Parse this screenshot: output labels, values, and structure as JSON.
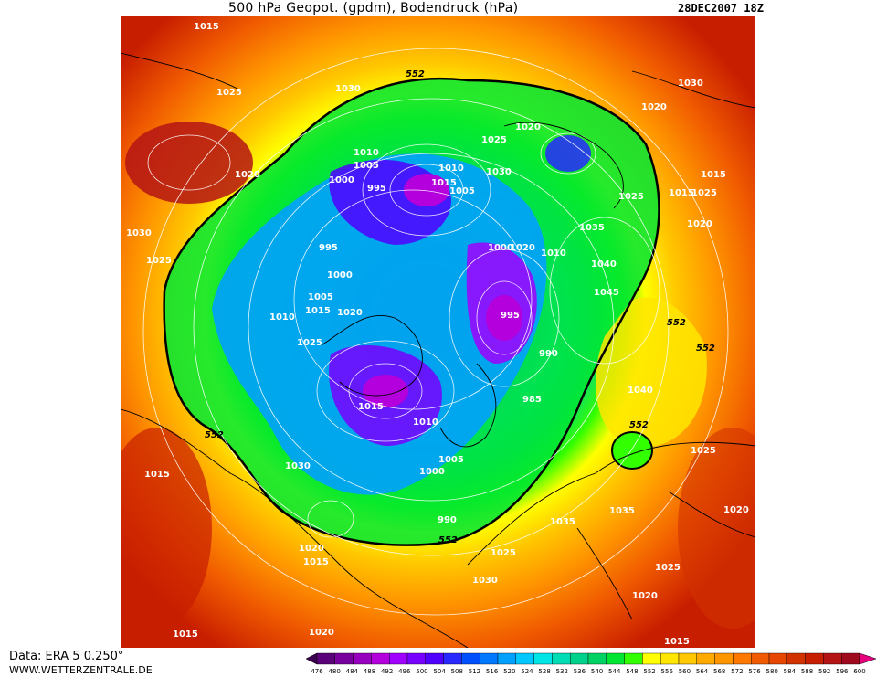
{
  "header": {
    "title": "500 hPa Geopot. (gpdm), Bodendruck (hPa)",
    "datetime": "28DEC2007 18Z"
  },
  "footer": {
    "source": "Data: ERA 5 0.250°",
    "website": "WWW.WETTERZENTRALE.DE"
  },
  "legend": {
    "values": [
      "476",
      "480",
      "484",
      "488",
      "492",
      "496",
      "500",
      "504",
      "508",
      "512",
      "516",
      "520",
      "524",
      "528",
      "532",
      "536",
      "540",
      "544",
      "548",
      "552",
      "556",
      "560",
      "564",
      "568",
      "572",
      "576",
      "580",
      "584",
      "588",
      "592",
      "596",
      "600"
    ],
    "colors": [
      "#3c0050",
      "#5a0078",
      "#78009c",
      "#9600be",
      "#b400dc",
      "#a000ff",
      "#7800ff",
      "#5000ff",
      "#2828ff",
      "#0050ff",
      "#0078ff",
      "#00a0ff",
      "#00c8ff",
      "#00e6e6",
      "#00dcb4",
      "#00d28c",
      "#00d264",
      "#00e632",
      "#32ff00",
      "#ffff00",
      "#ffe600",
      "#ffc800",
      "#ffaa00",
      "#ff9600",
      "#ff7800",
      "#f05a00",
      "#e64600",
      "#d23200",
      "#c81e00",
      "#b41414",
      "#a00a1e",
      "#e6007e"
    ]
  },
  "map": {
    "contour_label_552": "552",
    "pressure_labels": [
      {
        "text": "1015"
      },
      {
        "text": "1025"
      },
      {
        "text": "1020"
      },
      {
        "text": "1030"
      },
      {
        "text": "1025"
      },
      {
        "text": "1010"
      },
      {
        "text": "1005"
      },
      {
        "text": "1000"
      },
      {
        "text": "995"
      },
      {
        "text": "995"
      },
      {
        "text": "1000"
      },
      {
        "text": "1005"
      },
      {
        "text": "1010"
      },
      {
        "text": "1015"
      },
      {
        "text": "1020"
      },
      {
        "text": "1025"
      },
      {
        "text": "1030"
      },
      {
        "text": "1030"
      },
      {
        "text": "1025"
      },
      {
        "text": "1020"
      },
      {
        "text": "1015"
      },
      {
        "text": "1010"
      },
      {
        "text": "1005"
      },
      {
        "text": "1000"
      },
      {
        "text": "995"
      },
      {
        "text": "990"
      },
      {
        "text": "985"
      },
      {
        "text": "990"
      },
      {
        "text": "1000"
      },
      {
        "text": "1005"
      },
      {
        "text": "1010"
      },
      {
        "text": "1015"
      },
      {
        "text": "1020"
      },
      {
        "text": "1025"
      },
      {
        "text": "1030"
      },
      {
        "text": "1035"
      },
      {
        "text": "1040"
      },
      {
        "text": "1045"
      },
      {
        "text": "1040"
      },
      {
        "text": "1035"
      },
      {
        "text": "1025"
      },
      {
        "text": "1020"
      },
      {
        "text": "1015"
      },
      {
        "text": "1010"
      },
      {
        "text": "1020"
      },
      {
        "text": "1015"
      },
      {
        "text": "1030"
      },
      {
        "text": "1025"
      },
      {
        "text": "1015"
      },
      {
        "text": "1020"
      },
      {
        "text": "1025"
      },
      {
        "text": "1020"
      },
      {
        "text": "1015"
      },
      {
        "text": "1035"
      },
      {
        "text": "1030"
      },
      {
        "text": "1025"
      },
      {
        "text": "1020"
      },
      {
        "text": "1015"
      },
      {
        "text": "1020"
      },
      {
        "text": "1015"
      }
    ]
  }
}
